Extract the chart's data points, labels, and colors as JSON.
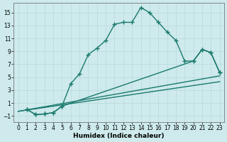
{
  "xlabel": "Humidex (Indice chaleur)",
  "bg_color": "#ceeaec",
  "line_color": "#1a7a6e",
  "xlim": [
    -0.5,
    23.5
  ],
  "ylim": [
    -2,
    16.5
  ],
  "xticks": [
    0,
    1,
    2,
    3,
    4,
    5,
    6,
    7,
    8,
    9,
    10,
    11,
    12,
    13,
    14,
    15,
    16,
    17,
    18,
    19,
    20,
    21,
    22,
    23
  ],
  "yticks": [
    -1,
    1,
    3,
    5,
    7,
    9,
    11,
    13,
    15
  ],
  "line1_x": [
    1,
    2,
    3,
    4,
    5,
    6,
    7,
    8,
    9,
    10,
    11,
    12,
    13,
    14,
    15,
    16,
    17,
    18,
    19,
    20,
    21,
    22,
    23
  ],
  "line1_y": [
    0.0,
    -0.8,
    -0.7,
    -0.5,
    0.5,
    4.0,
    5.5,
    8.5,
    9.5,
    10.7,
    13.2,
    13.5,
    13.5,
    15.8,
    15.0,
    13.5,
    12.0,
    10.7,
    7.5,
    7.5,
    9.3,
    8.8,
    5.7
  ],
  "line2_x": [
    1,
    2,
    3,
    4,
    5,
    20,
    21,
    22,
    23
  ],
  "line2_y": [
    0.0,
    -0.8,
    -0.7,
    -0.5,
    0.5,
    7.5,
    9.3,
    8.8,
    5.7
  ],
  "line3_x": [
    0,
    23
  ],
  "line3_y": [
    -0.3,
    5.2
  ],
  "line4_x": [
    0,
    23
  ],
  "line4_y": [
    -0.3,
    4.3
  ],
  "grid_color": "#b8d8da",
  "markersize": 2.5,
  "linewidth": 1.0
}
